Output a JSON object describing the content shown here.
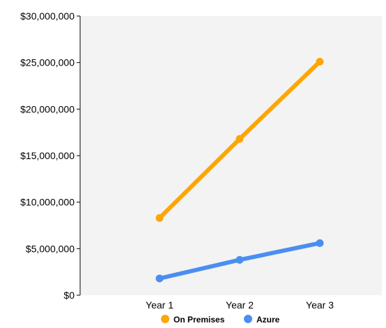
{
  "chart_data": {
    "type": "line",
    "categories": [
      "Year 1",
      "Year 2",
      "Year 3"
    ],
    "series": [
      {
        "name": "On Premises",
        "values": [
          8300000,
          16800000,
          25100000
        ],
        "color": "#FFA500"
      },
      {
        "name": "Azure",
        "values": [
          1800000,
          3800000,
          5600000
        ],
        "color": "#4A8EF0"
      }
    ],
    "ylim": [
      0,
      30000000
    ],
    "yticks": [
      0,
      5000000,
      10000000,
      15000000,
      20000000,
      25000000,
      30000000
    ],
    "ytick_labels": [
      "$0",
      "$5,000,000",
      "$10,000,000",
      "$15,000,000",
      "$20,000,000",
      "$25,000,000",
      "$30,000,000"
    ],
    "legend_position": "bottom-center",
    "plot_background": "#F3F3F3",
    "grid": false
  }
}
